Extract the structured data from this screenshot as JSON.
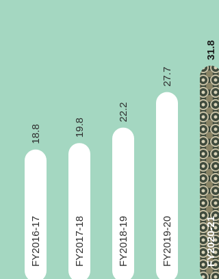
{
  "chart_data": {
    "type": "bar",
    "orientation": "vertical",
    "categories": [
      "FY2016-17",
      "FY2017-18",
      "FY2018-19",
      "FY2019-20",
      "FY2020-21"
    ],
    "values": [
      18.8,
      19.8,
      22.2,
      27.7,
      31.8
    ],
    "value_labels": [
      "18.8",
      "19.8",
      "22.2",
      "27.7",
      "31.8"
    ],
    "highlight_index": 4,
    "title": "",
    "xlabel": "",
    "ylabel": "",
    "ylim": [
      0,
      31.8
    ],
    "grid": false,
    "legend": "none"
  },
  "colors": {
    "background": "#a4d7c1",
    "bar": "#ffffff",
    "highlight_bar": "#4a4a3a",
    "text": "#2e2e2e"
  },
  "icons": {
    "highlight_bar_fill": "mosaic-pattern"
  }
}
